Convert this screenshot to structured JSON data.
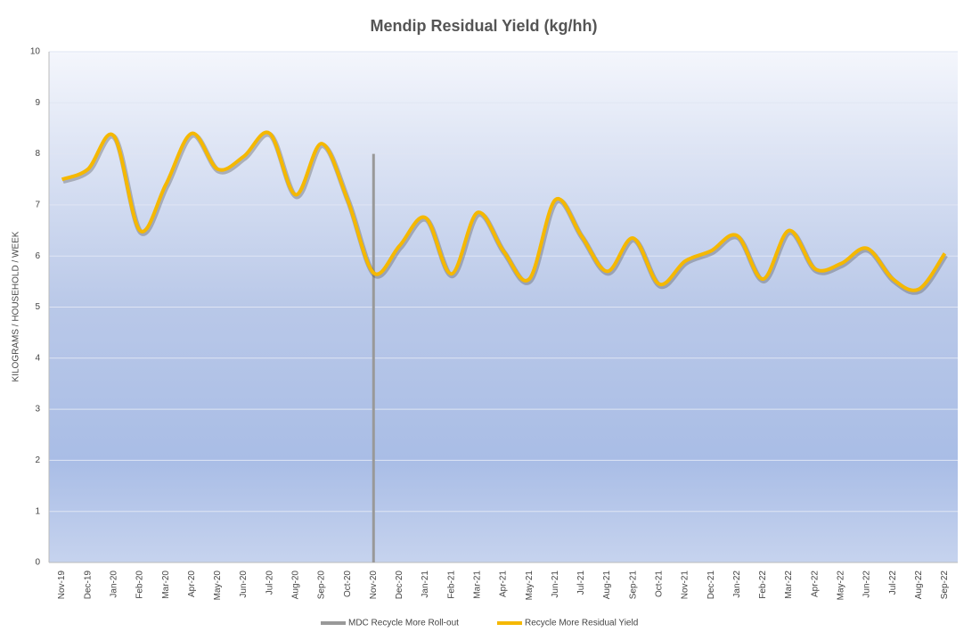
{
  "chart_data": {
    "type": "line",
    "title": "Mendip Residual Yield (kg/hh)",
    "y_label": "KILOGRAMS / HOUSEHOLD / WEEK",
    "categories": [
      "Nov-19",
      "Dec-19",
      "Jan-20",
      "Feb-20",
      "Mar-20",
      "Apr-20",
      "May-20",
      "Jun-20",
      "Jul-20",
      "Aug-20",
      "Sep-20",
      "Oct-20",
      "Nov-20",
      "Dec-20",
      "Jan-21",
      "Feb-21",
      "Mar-21",
      "Apr-21",
      "May-21",
      "Jun-21",
      "Jul-21",
      "Aug-21",
      "Sep-21",
      "Oct-21",
      "Nov-21",
      "Dec-21",
      "Jan-22",
      "Feb-22",
      "Mar-22",
      "Apr-22",
      "May-22",
      "Jun-22",
      "Jul-22",
      "Aug-22",
      "Sep-22"
    ],
    "series": [
      {
        "name": "Recycle More Residual Yield",
        "color": "#f5b800",
        "values": [
          7.5,
          7.7,
          8.35,
          6.5,
          7.4,
          8.4,
          7.7,
          7.95,
          8.4,
          7.2,
          8.2,
          7.1,
          5.67,
          6.2,
          6.75,
          5.65,
          6.85,
          6.1,
          5.55,
          7.1,
          6.4,
          5.7,
          6.35,
          5.45,
          5.9,
          6.1,
          6.4,
          5.55,
          6.5,
          5.75,
          5.85,
          6.15,
          5.55,
          5.35,
          6.05
        ]
      }
    ],
    "rollout": {
      "name": "MDC Recycle More Roll-out",
      "color": "#999999",
      "category": "Nov-20",
      "value": 8
    },
    "ylim": [
      0,
      10
    ],
    "yticks": [
      0,
      1,
      2,
      3,
      4,
      5,
      6,
      7,
      8,
      9,
      10
    ],
    "grid": true
  }
}
